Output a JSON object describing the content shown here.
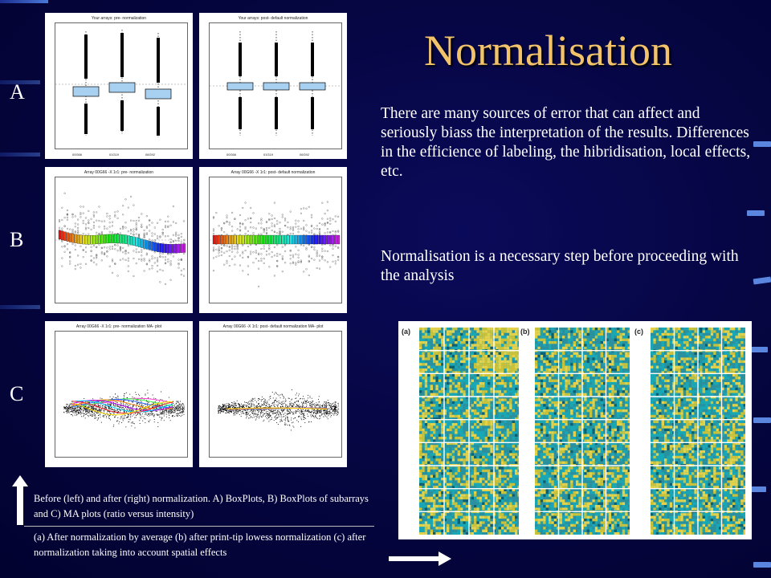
{
  "slide": {
    "title": "Normalisation",
    "paragraph_1": "There are many sources of error that can affect and seriously biass the interpretation of the results. Differences in the efficience of labeling, the hibridisation, local effects, etc.",
    "paragraph_2": "Normalisation is a necessary step before proceeding with the analysis",
    "row_labels": [
      "A",
      "B",
      "C"
    ],
    "caption_top": "Before (left) and after (right) normalization.  A) BoxPlots, B) BoxPlots of subarrays and C) MA plots (ratio versus intensity)",
    "caption_bottom": "(a) After normalization by average (b) after print-tip lowess normalization (c) after normalization taking into account spatial effects"
  },
  "plots": {
    "a_left_title": "Your arrays: pre- normalization",
    "a_right_title": "Your arrays: post- default normalization",
    "a_xlabels": [
      "00G66",
      "01G19",
      "06G92"
    ],
    "b_left_title": "Array 00G66 -X 1r1: pre- normalization",
    "b_right_title": "Array 00G66 -X 1r1: post- default normalization",
    "c_left_title": "Array 00G66 -X 1r1: pre- normalization MA- plot",
    "c_right_title": "Array 00G66 -X 1r1: post- default normalization MA- plot"
  },
  "heatmaps": {
    "labels": [
      "(a)",
      "(b)",
      "(c)"
    ]
  },
  "colors": {
    "background": "#04043c",
    "title": "#f3c36b",
    "box_fill": "#a8d0f0",
    "heat_cyan": "#1aa7b5",
    "heat_yellow": "#e6d24a"
  }
}
